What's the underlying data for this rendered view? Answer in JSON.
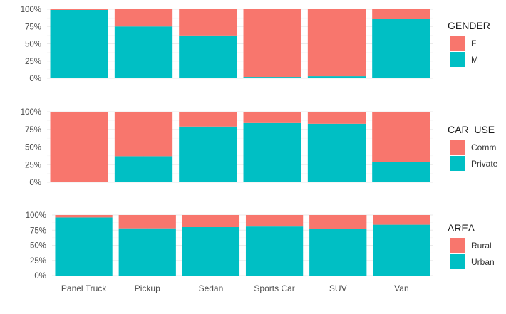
{
  "chart_data": [
    {
      "type": "bar",
      "stacked": "percent",
      "categories": [
        "Panel Truck",
        "Pickup",
        "Sedan",
        "Sports Car",
        "SUV",
        "Van"
      ],
      "series": [
        {
          "name": "F",
          "values": [
            1,
            25,
            38,
            98,
            97,
            14
          ]
        },
        {
          "name": "M",
          "values": [
            99,
            75,
            62,
            2,
            3,
            86
          ]
        }
      ],
      "legend_title": "GENDER",
      "ylim": [
        0,
        100
      ],
      "yticks": [
        "0%",
        "25%",
        "50%",
        "75%",
        "100%"
      ],
      "colors": {
        "F": "#F8766D",
        "M": "#00BFC4"
      },
      "legend_position": "right",
      "grid": true
    },
    {
      "type": "bar",
      "stacked": "percent",
      "categories": [
        "Panel Truck",
        "Pickup",
        "Sedan",
        "Sports Car",
        "SUV",
        "Van"
      ],
      "series": [
        {
          "name": "Comm",
          "values": [
            100,
            63,
            21,
            16,
            17,
            71
          ]
        },
        {
          "name": "Private",
          "values": [
            0,
            37,
            79,
            84,
            83,
            29
          ]
        }
      ],
      "legend_title": "CAR_USE",
      "ylim": [
        0,
        100
      ],
      "yticks": [
        "0%",
        "25%",
        "50%",
        "75%",
        "100%"
      ],
      "colors": {
        "Comm": "#F8766D",
        "Private": "#00BFC4"
      },
      "legend_position": "right",
      "grid": true
    },
    {
      "type": "bar",
      "stacked": "percent",
      "categories": [
        "Panel Truck",
        "Pickup",
        "Sedan",
        "Sports Car",
        "SUV",
        "Van"
      ],
      "series": [
        {
          "name": "Rural",
          "values": [
            4,
            22,
            20,
            19,
            23,
            16
          ]
        },
        {
          "name": "Urban",
          "values": [
            96,
            78,
            80,
            81,
            77,
            84
          ]
        }
      ],
      "legend_title": "AREA",
      "ylim": [
        0,
        100
      ],
      "yticks": [
        "0%",
        "25%",
        "50%",
        "75%",
        "100%"
      ],
      "colors": {
        "Rural": "#F8766D",
        "Urban": "#00BFC4"
      },
      "legend_position": "right",
      "grid": true
    }
  ]
}
